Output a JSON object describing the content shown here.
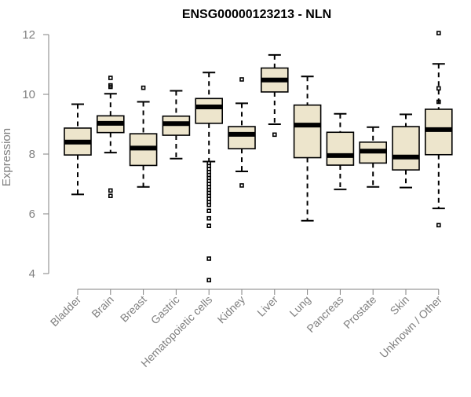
{
  "chart_data": {
    "type": "boxplot",
    "title": "ENSG00000123213 - NLN",
    "ylabel": "Expression",
    "ylim": [
      3.7,
      12.2
    ],
    "yticks": [
      4,
      6,
      8,
      10,
      12
    ],
    "box_color": "#EDE5CC",
    "categories": [
      "Bladder",
      "Brain",
      "Breast",
      "Gastric",
      "Hematopoietic cells",
      "Kidney",
      "Liver",
      "Lung",
      "Pancreas",
      "Prostate",
      "Skin",
      "Unknown / Other"
    ],
    "series": [
      {
        "category": "Bladder",
        "min": 6.65,
        "q1": 7.97,
        "median": 8.4,
        "q3": 8.87,
        "max": 9.67,
        "outliers": []
      },
      {
        "category": "Brain",
        "min": 8.05,
        "q1": 8.72,
        "median": 9.03,
        "q3": 9.28,
        "max": 10.02,
        "outliers": [
          10.55,
          10.3,
          10.25,
          6.78,
          6.6
        ]
      },
      {
        "category": "Breast",
        "min": 6.9,
        "q1": 7.62,
        "median": 8.2,
        "q3": 8.68,
        "max": 9.75,
        "outliers": [
          10.22
        ]
      },
      {
        "category": "Gastric",
        "min": 7.85,
        "q1": 8.63,
        "median": 9.02,
        "q3": 9.27,
        "max": 10.12,
        "outliers": []
      },
      {
        "category": "Hematopoietic cells",
        "min": 7.75,
        "q1": 9.03,
        "median": 9.58,
        "q3": 9.86,
        "max": 10.73,
        "outliers": [
          7.7,
          7.6,
          7.5,
          7.4,
          7.3,
          7.2,
          7.1,
          7.0,
          6.9,
          6.8,
          6.7,
          6.6,
          6.5,
          6.4,
          6.3,
          6.1,
          5.85,
          5.6,
          4.5,
          3.78
        ]
      },
      {
        "category": "Kidney",
        "min": 7.42,
        "q1": 8.18,
        "median": 8.66,
        "q3": 8.92,
        "max": 9.7,
        "outliers": [
          10.5,
          6.95
        ]
      },
      {
        "category": "Liver",
        "min": 9.0,
        "q1": 10.08,
        "median": 10.48,
        "q3": 10.88,
        "max": 11.32,
        "outliers": [
          8.65
        ]
      },
      {
        "category": "Lung",
        "min": 5.77,
        "q1": 7.88,
        "median": 8.97,
        "q3": 9.64,
        "max": 10.6,
        "outliers": []
      },
      {
        "category": "Pancreas",
        "min": 6.82,
        "q1": 7.63,
        "median": 7.95,
        "q3": 8.73,
        "max": 9.35,
        "outliers": []
      },
      {
        "category": "Prostate",
        "min": 6.9,
        "q1": 7.7,
        "median": 8.1,
        "q3": 8.4,
        "max": 8.9,
        "outliers": []
      },
      {
        "category": "Skin",
        "min": 6.88,
        "q1": 7.47,
        "median": 7.9,
        "q3": 8.92,
        "max": 9.33,
        "outliers": []
      },
      {
        "category": "Unknown / Other",
        "min": 6.18,
        "q1": 7.98,
        "median": 8.82,
        "q3": 9.5,
        "max": 11.02,
        "outliers": [
          12.05,
          10.2,
          9.75,
          5.62
        ]
      }
    ]
  }
}
